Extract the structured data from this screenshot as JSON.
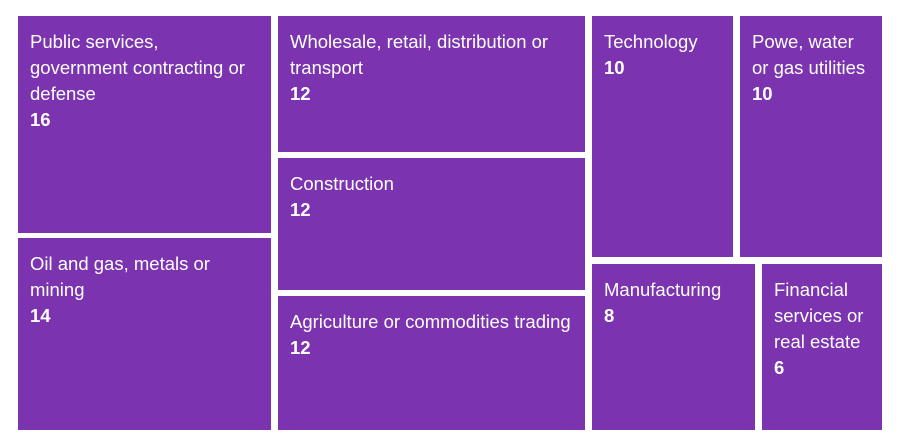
{
  "chart_data": {
    "type": "treemap",
    "color": "#7b33b0",
    "items": [
      {
        "label": "Public services, government contracting or defense",
        "value": 16
      },
      {
        "label": "Oil and gas, metals or mining",
        "value": 14
      },
      {
        "label": "Wholesale, retail, distribution or transport",
        "value": 12
      },
      {
        "label": "Construction",
        "value": 12
      },
      {
        "label": "Agriculture or commodities trading",
        "value": 12
      },
      {
        "label": "Technology",
        "value": 10
      },
      {
        "label": "Powe, water or gas utilities",
        "value": 10
      },
      {
        "label": "Manufacturing",
        "value": 8
      },
      {
        "label": "Financial services or real estate",
        "value": 6
      }
    ]
  }
}
